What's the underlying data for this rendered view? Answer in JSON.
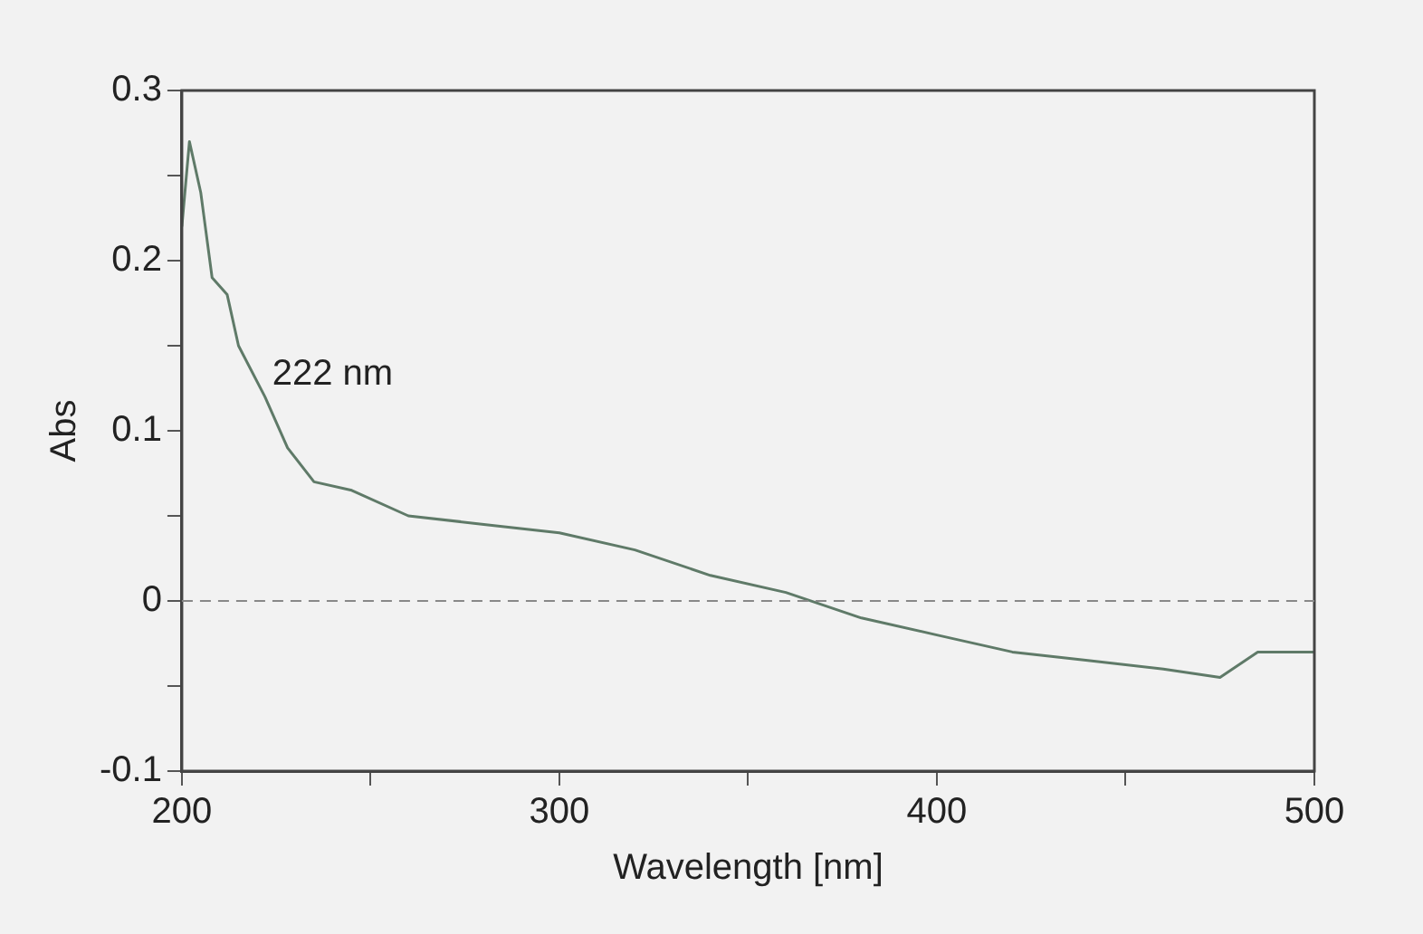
{
  "chart_data": {
    "type": "line",
    "xlabel": "Wavelength [nm]",
    "ylabel": "Abs",
    "x": [
      200,
      202,
      205,
      208,
      212,
      215,
      222,
      228,
      235,
      245,
      260,
      280,
      300,
      320,
      340,
      360,
      380,
      400,
      420,
      440,
      460,
      475,
      485,
      500
    ],
    "series": [
      {
        "color": "#5f7a68",
        "values": [
          0.22,
          0.27,
          0.24,
          0.19,
          0.18,
          0.15,
          0.12,
          0.09,
          0.07,
          0.065,
          0.05,
          0.045,
          0.04,
          0.03,
          0.015,
          0.005,
          -0.01,
          -0.02,
          -0.03,
          -0.035,
          -0.04,
          -0.045,
          -0.03,
          -0.03
        ]
      }
    ],
    "xlim": [
      200,
      500
    ],
    "ylim": [
      -0.1,
      0.3
    ],
    "xticks": [
      200,
      {
        "value": 250,
        "label": null
      },
      300,
      {
        "value": 350,
        "label": null
      },
      400,
      {
        "value": 450,
        "label": null
      },
      500
    ],
    "yticks": [
      -0.1,
      {
        "value": -0.05,
        "label": null
      },
      0,
      {
        "value": 0.05,
        "label": null
      },
      0.1,
      {
        "value": 0.15,
        "label": null
      },
      0.2,
      {
        "value": 0.25,
        "label": null
      },
      0.3
    ],
    "ref_lines": [
      {
        "axis": "y",
        "value": 0,
        "label": null,
        "color": "#888888",
        "line_style": "dashed"
      }
    ],
    "annotations": [
      {
        "text": "222 nm",
        "x": 222,
        "y": 0.12
      }
    ],
    "grid": false,
    "legend": false,
    "marker": "none",
    "line_style": "solid"
  }
}
